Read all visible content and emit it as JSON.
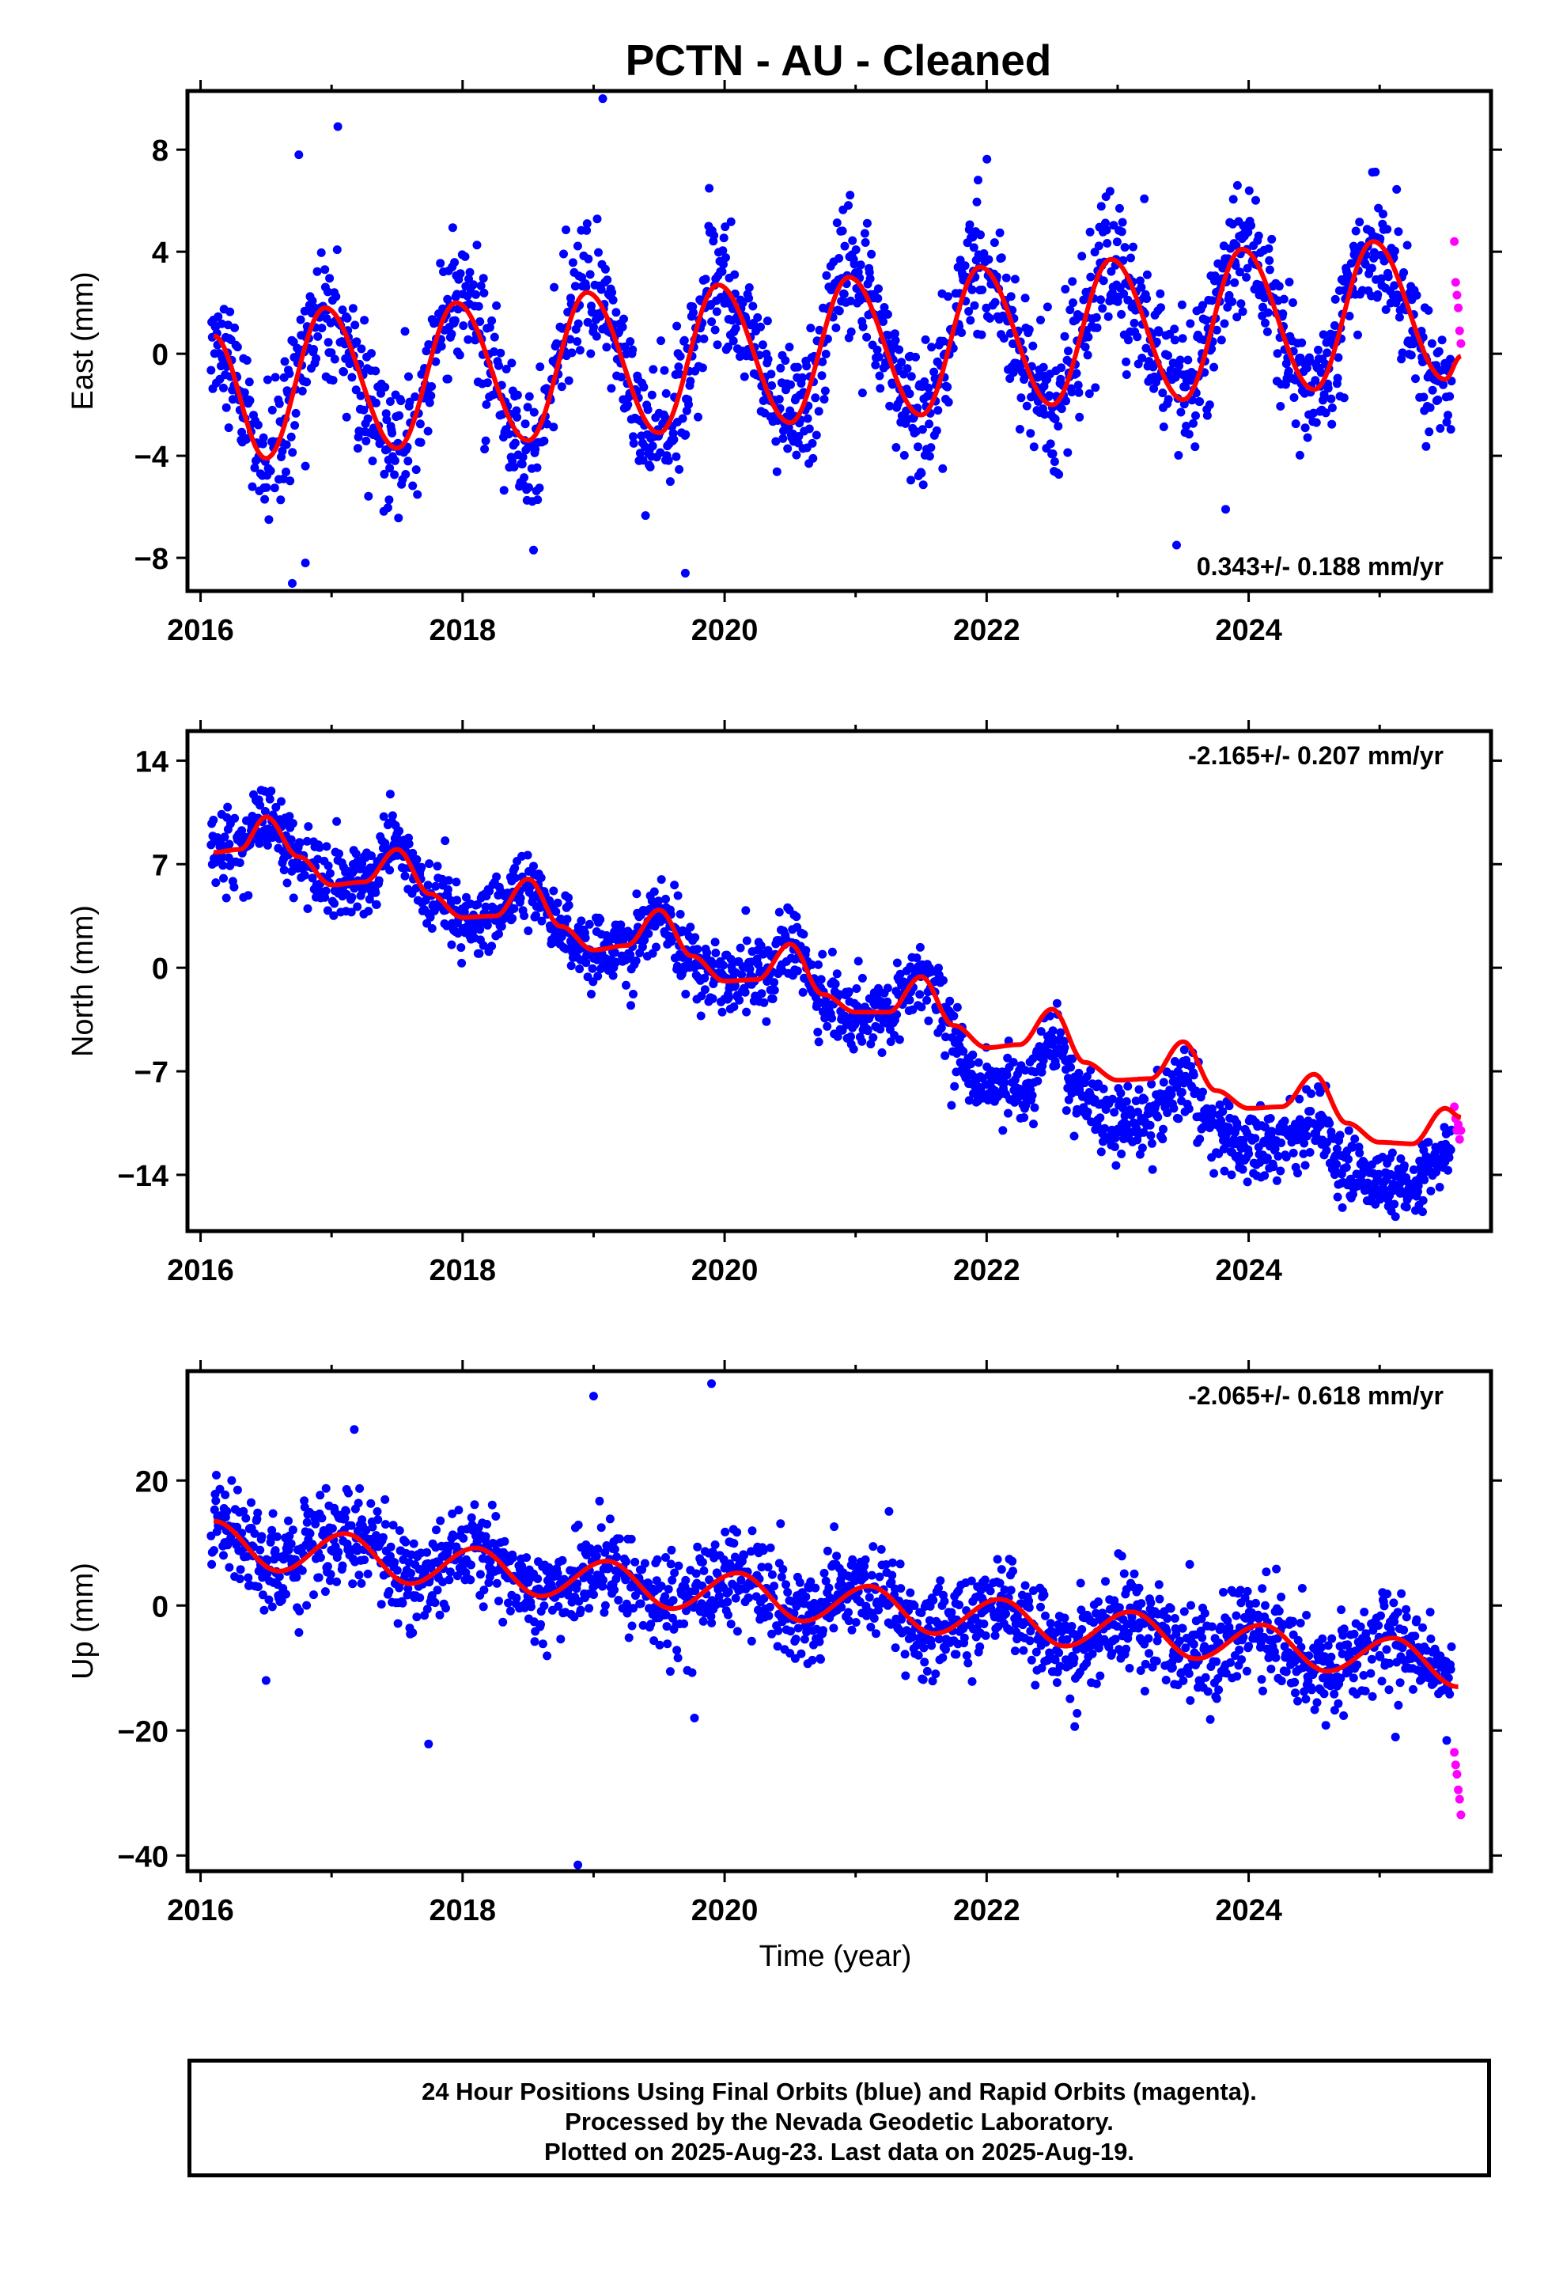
{
  "title": "PCTN  - AU - Cleaned",
  "xlabel": "Time (year)",
  "footer": {
    "line1": "24 Hour Positions Using Final Orbits (blue) and Rapid Orbits (magenta).",
    "line2": "Processed by the Nevada Geodetic Laboratory.",
    "line3": "Plotted on 2025-Aug-23. Last data on 2025-Aug-19."
  },
  "colors": {
    "final": "#0000ff",
    "rapid": "#ff00ff",
    "model": "#ff0000",
    "frame": "#000000"
  },
  "chart_data": [
    {
      "type": "scatter",
      "title": "PCTN  - AU - Cleaned",
      "ylabel": "East (mm)",
      "xlabel": "",
      "xlim": [
        2015.9,
        2025.85
      ],
      "ylim": [
        -9.3,
        10.3
      ],
      "xticks": [
        2016,
        2018,
        2020,
        2022,
        2024
      ],
      "yticks": [
        -8,
        -4,
        0,
        4,
        8
      ],
      "ytick_labels": [
        "−8",
        "−4",
        "0",
        "4",
        "8"
      ],
      "rate_label": "0.343+/- 0.188 mm/yr",
      "rate_position": "bottom-right",
      "model_series": {
        "name": "",
        "x": [
          2016.1,
          2016.5,
          2016.95,
          2017.5,
          2017.95,
          2018.5,
          2018.95,
          2019.5,
          2019.95,
          2020.5,
          2020.95,
          2021.5,
          2021.95,
          2022.5,
          2022.95,
          2023.5,
          2023.95,
          2024.5,
          2024.95,
          2025.5,
          2025.62
        ],
        "y": [
          0.7,
          -4.1,
          1.8,
          -3.7,
          2.0,
          -3.4,
          2.4,
          -3.1,
          2.7,
          -2.7,
          3.0,
          -2.4,
          3.4,
          -2.0,
          3.7,
          -1.8,
          4.1,
          -1.4,
          4.4,
          -1.0,
          -0.1
        ]
      },
      "final_orbits": {
        "x_range": [
          2016.08,
          2025.55
        ],
        "trend": "0.343 mm/yr",
        "spread_mm": 1.3,
        "outliers": [
          [
            2016.75,
            7.8
          ],
          [
            2019.07,
            10.0
          ],
          [
            2016.8,
            -8.2
          ],
          [
            2019.7,
            -8.6
          ],
          [
            2023.45,
            -7.5
          ],
          [
            2016.7,
            -9.0
          ]
        ]
      },
      "rapid_orbits": {
        "x": [
          2025.57,
          2025.58,
          2025.59,
          2025.6,
          2025.61,
          2025.62
        ],
        "y": [
          4.4,
          2.8,
          2.3,
          1.8,
          0.9,
          0.4
        ]
      }
    },
    {
      "type": "scatter",
      "ylabel": "North (mm)",
      "xlabel": "",
      "xlim": [
        2015.9,
        2025.85
      ],
      "ylim": [
        -17.8,
        16.0
      ],
      "xticks": [
        2016,
        2018,
        2020,
        2022,
        2024
      ],
      "yticks": [
        -14,
        -7,
        0,
        7,
        14
      ],
      "ytick_labels": [
        "−14",
        "−7",
        "0",
        "7",
        "14"
      ],
      "rate_label": "-2.165+/- 0.207 mm/yr",
      "rate_position": "top-right",
      "model_series": {
        "name": "",
        "x": [
          2016.1,
          2016.3,
          2016.5,
          2016.75,
          2017.0,
          2017.25,
          2017.5,
          2017.75,
          2018.0,
          2018.25,
          2018.5,
          2018.75,
          2019.0,
          2019.25,
          2019.5,
          2019.75,
          2020.0,
          2020.25,
          2020.5,
          2020.75,
          2021.0,
          2021.25,
          2021.5,
          2021.75,
          2022.0,
          2022.25,
          2022.5,
          2022.75,
          2023.0,
          2023.25,
          2023.5,
          2023.75,
          2024.0,
          2024.25,
          2024.5,
          2024.75,
          2025.0,
          2025.25,
          2025.5,
          2025.62
        ],
        "y": [
          7.8,
          8.0,
          10.2,
          7.5,
          5.6,
          5.8,
          8.0,
          5.0,
          3.4,
          3.5,
          6.0,
          2.8,
          1.2,
          1.5,
          3.9,
          0.8,
          -0.9,
          -0.8,
          1.6,
          -1.8,
          -3.0,
          -3.0,
          -0.6,
          -3.9,
          -5.4,
          -5.2,
          -2.8,
          -6.4,
          -7.6,
          -7.5,
          -5.0,
          -8.3,
          -9.5,
          -9.4,
          -7.2,
          -10.5,
          -11.8,
          -11.9,
          -9.5,
          -10.1
        ]
      },
      "final_orbits": {
        "x_range": [
          2016.08,
          2025.55
        ],
        "trend": "-2.165 mm/yr",
        "spread_mm": 1.2,
        "note_offset": "data shifts about 3 mm below the model curve after 2021.7"
      },
      "rapid_orbits": {
        "x": [
          2025.57,
          2025.58,
          2025.59,
          2025.6,
          2025.61,
          2025.62
        ],
        "y": [
          -9.4,
          -10.2,
          -11.0,
          -10.6,
          -11.6,
          -11.0
        ]
      }
    },
    {
      "type": "scatter",
      "ylabel": "Up (mm)",
      "xlabel": "Time (year)",
      "xlim": [
        2015.9,
        2025.85
      ],
      "ylim": [
        -42.5,
        37.5
      ],
      "xticks": [
        2016,
        2018,
        2020,
        2022,
        2024
      ],
      "yticks": [
        -40,
        -20,
        0,
        20
      ],
      "ytick_labels": [
        "−40",
        "−20",
        "0",
        "20"
      ],
      "rate_label": "-2.065+/- 0.618 mm/yr",
      "rate_position": "top-right",
      "model_series": {
        "name": "",
        "x": [
          2016.1,
          2016.6,
          2017.1,
          2017.6,
          2018.1,
          2018.6,
          2019.1,
          2019.6,
          2020.1,
          2020.6,
          2021.1,
          2021.6,
          2022.1,
          2022.6,
          2023.1,
          2023.6,
          2024.1,
          2024.6,
          2025.1,
          2025.6
        ],
        "y": [
          13.5,
          5.5,
          11.5,
          3.5,
          9.2,
          1.5,
          7.1,
          -0.5,
          5.2,
          -2.5,
          3.1,
          -4.5,
          1.0,
          -6.5,
          -1.0,
          -8.5,
          -3.1,
          -10.5,
          -5.2,
          -13.0
        ]
      },
      "final_orbits": {
        "x_range": [
          2016.08,
          2025.55
        ],
        "trend": "-2.065 mm/yr",
        "spread_mm": 3.8,
        "outliers": [
          [
            2019.0,
            33.5
          ],
          [
            2019.9,
            35.5
          ],
          [
            2018.88,
            -41.5
          ],
          [
            2019.77,
            -18.0
          ],
          [
            2016.5,
            -12.0
          ]
        ]
      },
      "rapid_orbits": {
        "x": [
          2025.57,
          2025.58,
          2025.59,
          2025.6,
          2025.61,
          2025.62
        ],
        "y": [
          -23.5,
          -25.5,
          -27.0,
          -29.5,
          -31.0,
          -33.5
        ]
      }
    }
  ]
}
